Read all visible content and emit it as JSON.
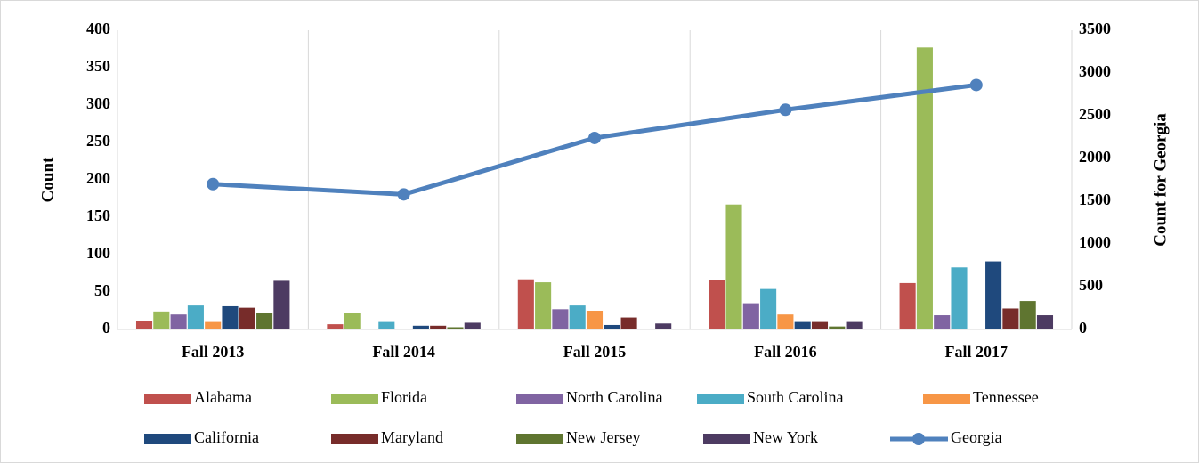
{
  "chart_data": {
    "type": "bar",
    "y_label": "Count",
    "y2_label": "Count for Georgia",
    "categories": [
      "Fall 2013",
      "Fall 2014",
      "Fall 2015",
      "Fall 2016",
      "Fall 2017"
    ],
    "ylim": [
      0,
      400
    ],
    "yticks": [
      0,
      50,
      100,
      150,
      200,
      250,
      300,
      350,
      400
    ],
    "y2lim": [
      0,
      3500
    ],
    "y2ticks": [
      0,
      500,
      1000,
      1500,
      2000,
      2500,
      3000,
      3500
    ],
    "grid": true,
    "legend": "bottom",
    "series": [
      {
        "name": "Alabama",
        "color": "#c0504d",
        "values": [
          11,
          7,
          67,
          66,
          62
        ]
      },
      {
        "name": "Florida",
        "color": "#9bbb59",
        "values": [
          24,
          22,
          63,
          167,
          377
        ]
      },
      {
        "name": "North Carolina",
        "color": "#8064a2",
        "values": [
          20,
          0,
          27,
          35,
          19
        ]
      },
      {
        "name": "South Carolina",
        "color": "#4bacc6",
        "values": [
          32,
          10,
          32,
          54,
          83
        ]
      },
      {
        "name": "Tennessee",
        "color": "#f79646",
        "values": [
          10,
          0,
          25,
          20,
          1
        ]
      },
      {
        "name": "California",
        "color": "#1f497d",
        "values": [
          31,
          5,
          6,
          10,
          91
        ]
      },
      {
        "name": "Maryland",
        "color": "#772c2a",
        "values": [
          29,
          5,
          16,
          10,
          28
        ]
      },
      {
        "name": "New Jersey",
        "color": "#5f7530",
        "values": [
          22,
          3,
          0,
          4,
          38
        ]
      },
      {
        "name": "New York",
        "color": "#4d3b62",
        "values": [
          65,
          9,
          8,
          10,
          19
        ]
      },
      {
        "name": "Georgia",
        "color": "#4f81bd",
        "type": "line",
        "axis": "y2",
        "values": [
          1700,
          1580,
          2240,
          2570,
          2860
        ]
      }
    ]
  }
}
